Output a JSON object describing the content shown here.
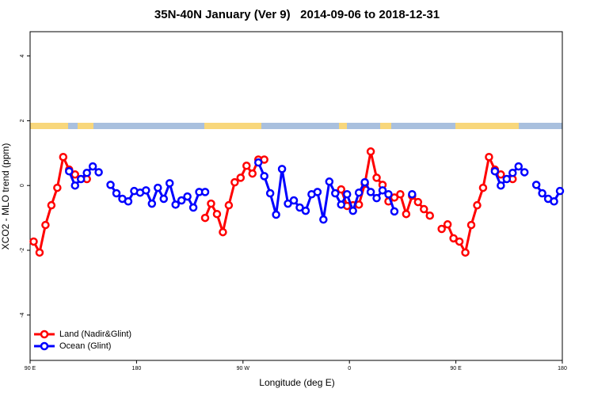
{
  "chart_data": {
    "type": "line",
    "title": "35N-40N January (Ver 9)   2014-09-06 to 2018-12-31",
    "x_label": "Longitude (deg E)",
    "y_label": "XCO2 - MLO trend (ppm)",
    "xlim": [
      90,
      540
    ],
    "ylim": [
      -5.4,
      4.75
    ],
    "xticks": [
      {
        "value": 90,
        "label": "90 E"
      },
      180,
      {
        "value": 270,
        "label": "90 W"
      },
      {
        "value": 360,
        "label": "0"
      },
      {
        "value": 450,
        "label": "90 E"
      },
      {
        "value": 540,
        "label": "180"
      }
    ],
    "yticks": [
      -4,
      -2,
      0,
      2,
      4
    ],
    "legend": "bottom-left",
    "series": [
      {
        "name": "Land (Nadir&Glint)",
        "color": "#ff0000",
        "x": [
          93,
          98,
          103,
          108,
          113,
          118,
          123,
          128,
          133,
          138,
          143,
          238,
          243,
          248,
          253,
          258,
          263,
          268,
          273,
          278,
          283,
          288,
          293,
          353,
          358,
          363,
          368,
          373,
          378,
          383,
          388,
          393,
          398,
          403,
          408,
          413,
          418,
          423,
          428,
          433,
          438,
          443,
          448,
          453,
          458,
          463,
          468,
          473,
          478,
          483,
          488,
          493,
          498
        ],
        "values": [
          -1.73,
          -2.07,
          -1.22,
          -0.61,
          -0.07,
          0.88,
          0.49,
          0.34,
          null,
          0.2,
          null,
          -1.0,
          -0.56,
          -0.88,
          -1.44,
          -0.61,
          0.1,
          0.24,
          0.61,
          0.37,
          0.8,
          0.8,
          null,
          -0.12,
          -0.63,
          -0.61,
          -0.59,
          0.05,
          1.05,
          0.24,
          0.02,
          -0.49,
          -0.37,
          -0.27,
          -0.88,
          -0.32,
          -0.51,
          -0.73,
          -0.93,
          null,
          -1.34,
          -1.2,
          -1.63,
          -1.73,
          -2.07,
          -1.22,
          -0.61,
          -0.07,
          0.88,
          0.49,
          0.34,
          null,
          0.2
        ]
      },
      {
        "name": "Ocean (Glint)",
        "color": "#0000ff",
        "x": [
          123,
          128,
          133,
          138,
          143,
          148,
          153,
          158,
          163,
          168,
          173,
          178,
          183,
          188,
          193,
          198,
          203,
          208,
          213,
          218,
          223,
          228,
          233,
          238,
          243,
          283,
          288,
          293,
          298,
          303,
          308,
          313,
          318,
          323,
          328,
          333,
          338,
          343,
          348,
          353,
          358,
          363,
          368,
          373,
          378,
          383,
          388,
          393,
          398,
          403,
          413,
          418,
          483,
          488,
          493,
          498,
          503,
          508,
          513,
          518,
          523,
          528,
          533,
          538
        ],
        "values": [
          0.44,
          0,
          0.2,
          0.39,
          0.59,
          0.41,
          null,
          0.02,
          -0.24,
          -0.41,
          -0.49,
          -0.17,
          -0.22,
          -0.15,
          -0.56,
          -0.07,
          -0.41,
          0.07,
          -0.59,
          -0.46,
          -0.34,
          -0.68,
          -0.2,
          -0.2,
          null,
          0.71,
          0.29,
          -0.24,
          -0.9,
          0.51,
          -0.56,
          -0.46,
          -0.68,
          -0.78,
          -0.27,
          -0.2,
          -1.05,
          0.12,
          -0.24,
          -0.59,
          -0.27,
          -0.78,
          -0.22,
          0.1,
          -0.2,
          -0.39,
          -0.15,
          -0.27,
          -0.8,
          null,
          -0.27,
          null,
          0.44,
          0,
          0.2,
          0.39,
          0.59,
          0.41,
          null,
          0.02,
          -0.24,
          -0.41,
          -0.49,
          -0.17
        ]
      }
    ]
  }
}
